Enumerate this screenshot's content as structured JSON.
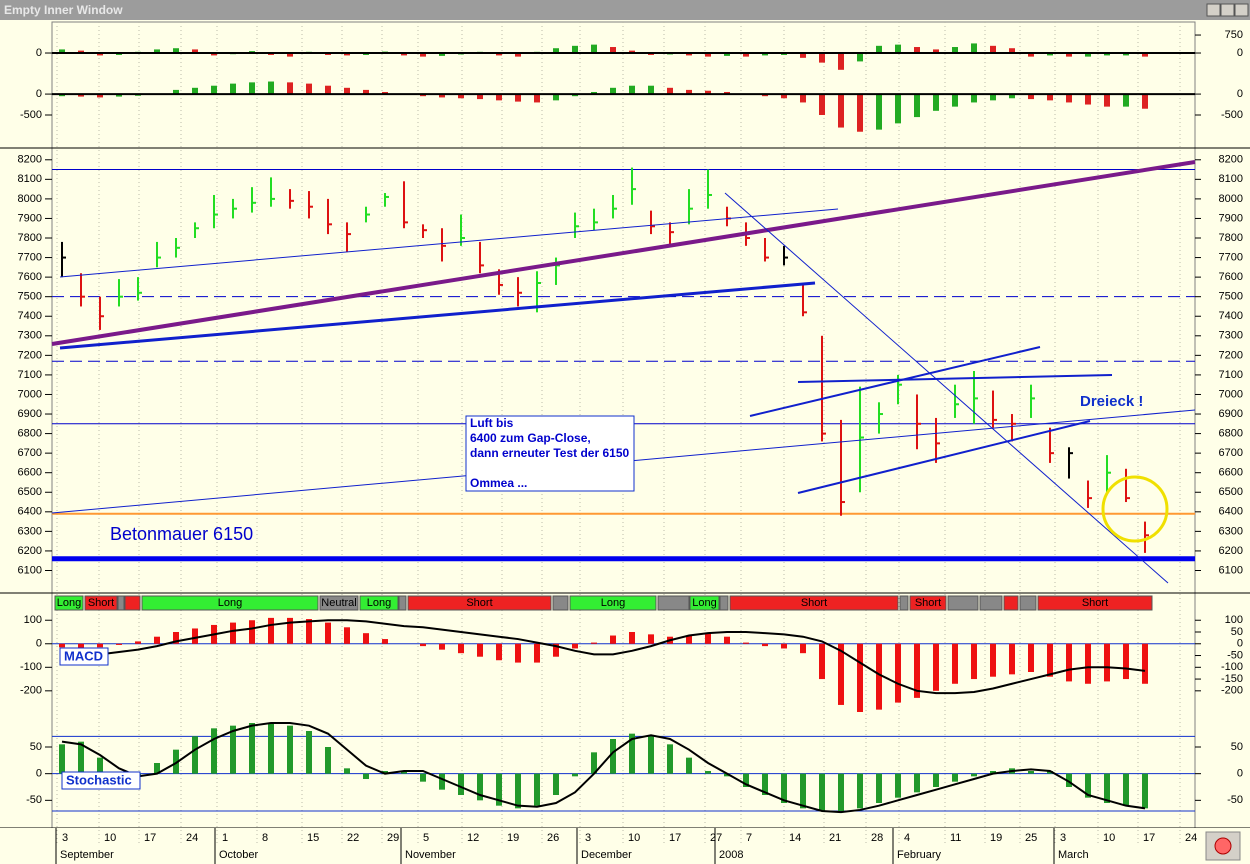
{
  "window": {
    "title": "Empty Inner Window"
  },
  "chart_data": [
    {
      "type": "bar",
      "colors": {
        "up": "#22aa22",
        "down": "#dd2222"
      },
      "values": [
        150,
        100,
        -100,
        -80,
        50,
        150,
        200,
        150,
        -100,
        -50,
        80,
        -80,
        -150,
        50,
        -80,
        -100,
        -80,
        60,
        -100,
        -150,
        -120,
        -60,
        50,
        -100,
        -150,
        50,
        200,
        300,
        350,
        250,
        100,
        -80,
        -60,
        -100,
        -150,
        -120,
        -150,
        -100,
        -80,
        -200,
        -400,
        -700,
        -350,
        300,
        350,
        250,
        150,
        250,
        400,
        300,
        200,
        -150,
        -100,
        -150,
        -150,
        -100,
        -100,
        -150
      ],
      "ylim": [
        -875,
        960
      ],
      "yticks": [
        0
      ],
      "y2lim": [
        -875,
        960
      ],
      "y2ticks": [
        750,
        0
      ]
    },
    {
      "type": "bar",
      "colors": {
        "up": "#22aa22",
        "down": "#dd2222"
      },
      "values": [
        -50,
        -60,
        -80,
        -60,
        -40,
        0,
        100,
        150,
        200,
        250,
        280,
        300,
        280,
        250,
        200,
        150,
        100,
        50,
        0,
        -50,
        -80,
        -100,
        -120,
        -150,
        -180,
        -200,
        -150,
        -50,
        50,
        150,
        200,
        200,
        150,
        100,
        80,
        50,
        0,
        -50,
        -100,
        -200,
        -500,
        -800,
        -900,
        -850,
        -700,
        -550,
        -400,
        -300,
        -200,
        -150,
        -100,
        -120,
        -150,
        -200,
        -250,
        -300,
        -300,
        -350
      ],
      "ylim": [
        -1050,
        480
      ],
      "yticks": [
        0,
        -500
      ],
      "y2lim": [
        -1050,
        480
      ],
      "y2ticks": [
        0,
        -500
      ]
    },
    {
      "type": "ohlc",
      "colors": {
        "up": "#22dd22",
        "down": "#dd1111"
      },
      "high": [
        7780,
        7620,
        7500,
        7590,
        7600,
        7780,
        7800,
        7880,
        8020,
        8000,
        8060,
        8110,
        8050,
        8040,
        8000,
        7880,
        7960,
        8030,
        8090,
        7870,
        7850,
        7920,
        7780,
        7640,
        7600,
        7630,
        7700,
        7930,
        7950,
        8020,
        8160,
        7940,
        7880,
        8050,
        8150,
        7960,
        7880,
        7800,
        7760,
        7570,
        7300,
        6870,
        7040,
        6960,
        7100,
        7000,
        6880,
        7050,
        7120,
        7020,
        6900,
        7050,
        6830,
        6730,
        6560,
        6690,
        6620,
        6350
      ],
      "low": [
        7600,
        7450,
        7330,
        7450,
        7480,
        7650,
        7700,
        7800,
        7850,
        7900,
        7930,
        7960,
        7950,
        7900,
        7820,
        7730,
        7880,
        7960,
        7850,
        7800,
        7680,
        7760,
        7620,
        7510,
        7450,
        7420,
        7560,
        7800,
        7840,
        7900,
        7970,
        7820,
        7760,
        7870,
        7950,
        7860,
        7760,
        7680,
        7660,
        7400,
        6760,
        6380,
        6500,
        6800,
        6950,
        6720,
        6650,
        6880,
        6850,
        6830,
        6760,
        6880,
        6650,
        6570,
        6420,
        6500,
        6450,
        6190
      ],
      "close": [
        7700,
        7500,
        7400,
        7500,
        7520,
        7700,
        7750,
        7850,
        7920,
        7950,
        7980,
        8000,
        7990,
        7960,
        7870,
        7820,
        7920,
        8010,
        7880,
        7840,
        7760,
        7800,
        7660,
        7560,
        7520,
        7570,
        7660,
        7860,
        7880,
        7950,
        8050,
        7860,
        7830,
        7950,
        8020,
        7900,
        7800,
        7700,
        7700,
        7420,
        6800,
        6450,
        6780,
        6900,
        7050,
        6850,
        6750,
        6950,
        6980,
        6870,
        6850,
        6980,
        6700,
        6700,
        6470,
        6600,
        6470,
        6280
      ],
      "ylim": [
        5990,
        8250
      ],
      "yticks": [
        8200,
        8100,
        8000,
        7900,
        7800,
        7700,
        7600,
        7500,
        7400,
        7300,
        7200,
        7100,
        7000,
        6900,
        6800,
        6700,
        6600,
        6500,
        6400,
        6300,
        6200,
        6100
      ],
      "levels": [
        {
          "value": 8150,
          "color": "#0000cc",
          "style": "solid",
          "weight": 1
        },
        {
          "value": 7500,
          "color": "#0000cc",
          "style": "dashed",
          "weight": 1
        },
        {
          "value": 7170,
          "color": "#0000cc",
          "style": "dashed",
          "weight": 1
        },
        {
          "value": 6850,
          "color": "#0000cc",
          "style": "solid",
          "weight": 1
        },
        {
          "value": 6390,
          "color": "#ff9933",
          "style": "solid",
          "weight": 2
        },
        {
          "value": 6160,
          "color": "#0000ee",
          "style": "solid",
          "weight": 5
        }
      ],
      "annotations": {
        "wall": "Betonmauer 6150",
        "triangle": "Dreieck !",
        "note": [
          "Luft bis",
          "6400 zum Gap-Close,",
          "dann erneuter Test der 6150",
          "Ommea ..."
        ]
      }
    },
    {
      "type": "histogram-line",
      "label": "MACD",
      "histogram": {
        "color": "#ee1111",
        "values": [
          -15,
          -20,
          -15,
          -5,
          10,
          30,
          50,
          65,
          80,
          90,
          100,
          110,
          110,
          105,
          90,
          70,
          45,
          20,
          0,
          -10,
          -25,
          -40,
          -55,
          -70,
          -80,
          -80,
          -55,
          -20,
          5,
          35,
          50,
          40,
          30,
          35,
          45,
          30,
          5,
          -10,
          -20,
          -40,
          -150,
          -260,
          -290,
          -280,
          -250,
          -230,
          -200,
          -170,
          -150,
          -140,
          -130,
          -120,
          -140,
          -160,
          -170,
          -160,
          -150,
          -170
        ]
      },
      "line": {
        "color": "#000000",
        "values": [
          -60,
          -55,
          -45,
          -35,
          -25,
          -10,
          10,
          25,
          40,
          55,
          65,
          80,
          90,
          95,
          100,
          100,
          95,
          85,
          75,
          70,
          60,
          50,
          40,
          30,
          20,
          5,
          -10,
          -30,
          -45,
          -45,
          -30,
          -10,
          15,
          35,
          45,
          50,
          50,
          45,
          40,
          30,
          10,
          -30,
          -80,
          -130,
          -170,
          -200,
          -210,
          -210,
          -205,
          -190,
          -170,
          -150,
          -130,
          -110,
          -100,
          -100,
          -105,
          -115
        ]
      },
      "ylim": [
        -290,
        135
      ],
      "yticks": [
        100,
        0,
        -100,
        -200
      ],
      "y2lim": [
        -290,
        135
      ],
      "y2ticks": [
        100,
        50,
        0,
        -50,
        -100,
        -150,
        -200
      ],
      "hlines": [
        0
      ]
    },
    {
      "type": "histogram-line",
      "label": "Stochastic",
      "histogram": {
        "color": "#22992a",
        "values": [
          55,
          60,
          30,
          -5,
          -5,
          20,
          45,
          70,
          85,
          90,
          95,
          95,
          90,
          80,
          50,
          10,
          -10,
          5,
          5,
          -15,
          -30,
          -40,
          -50,
          -60,
          -65,
          -60,
          -40,
          -5,
          40,
          65,
          75,
          70,
          55,
          30,
          5,
          -5,
          -25,
          -40,
          -55,
          -65,
          -70,
          -70,
          -65,
          -55,
          -45,
          -35,
          -25,
          -15,
          -5,
          5,
          10,
          5,
          5,
          -25,
          -45,
          -55,
          -60,
          -65
        ]
      },
      "line": {
        "color": "#000000",
        "values": [
          60,
          55,
          35,
          10,
          -5,
          0,
          20,
          45,
          65,
          80,
          90,
          95,
          95,
          90,
          75,
          45,
          15,
          0,
          5,
          5,
          -10,
          -25,
          -40,
          -50,
          -60,
          -62,
          -55,
          -35,
          0,
          40,
          65,
          72,
          65,
          45,
          20,
          0,
          -20,
          -35,
          -50,
          -60,
          -70,
          -72,
          -68,
          -60,
          -50,
          -40,
          -30,
          -20,
          -10,
          0,
          5,
          8,
          5,
          -15,
          -40,
          -50,
          -60,
          -65
        ]
      },
      "ylim": [
        -100,
        110
      ],
      "yticks": [
        50,
        0,
        -50
      ],
      "y2lim": [
        -100,
        110
      ],
      "y2ticks": [
        50,
        0,
        -50
      ],
      "hlines": [
        70,
        0,
        -70
      ]
    }
  ],
  "signals": [
    {
      "label": "Long",
      "color": "#33ee33"
    },
    {
      "label": "Short",
      "color": "#ee2222"
    },
    {
      "color": "#888888"
    },
    {
      "color": "#ee2222"
    },
    {
      "label": "Long",
      "color": "#33ee33"
    },
    {
      "label": "Neutral",
      "color": "#888888"
    },
    {
      "label": "Long",
      "color": "#33ee33"
    },
    {
      "color": "#888888"
    },
    {
      "label": "Short",
      "color": "#ee2222"
    },
    {
      "color": "#888888"
    },
    {
      "label": "Long",
      "color": "#33ee33"
    },
    {
      "color": "#888888"
    },
    {
      "label": "Long",
      "color": "#33ee33"
    },
    {
      "color": "#888888"
    },
    {
      "label": "Short",
      "color": "#ee2222"
    },
    {
      "color": "#888888"
    },
    {
      "label": "Short",
      "color": "#ee2222"
    },
    {
      "color": "#888888"
    },
    {
      "color": "#888888"
    },
    {
      "color": "#ee2222"
    },
    {
      "color": "#888888"
    },
    {
      "label": "Short",
      "color": "#ee2222"
    }
  ],
  "x_axis": {
    "days": [
      "3",
      "10",
      "17",
      "24",
      "1",
      "8",
      "15",
      "22",
      "29",
      "5",
      "12",
      "19",
      "26",
      "3",
      "10",
      "17",
      "27",
      "7",
      "14",
      "21",
      "28",
      "4",
      "11",
      "19",
      "25",
      "3",
      "10",
      "17",
      "24"
    ],
    "months": [
      "September",
      "October",
      "November",
      "December",
      "2008",
      "February",
      "March"
    ]
  }
}
